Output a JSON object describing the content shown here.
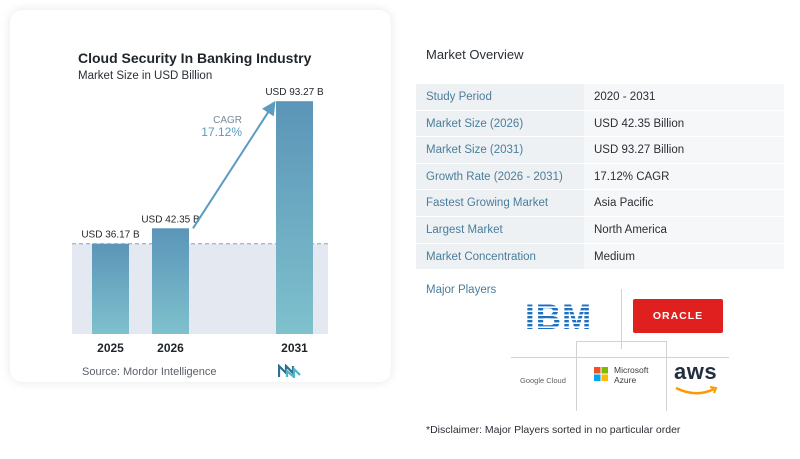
{
  "chart_card": {
    "title": "Cloud Security In Banking Industry",
    "subtitle": "Market Size in USD Billion",
    "cagr_label": "CAGR",
    "cagr_value": "17.12%",
    "source": "Source:  Mordor Intelligence"
  },
  "chart_data": {
    "type": "bar",
    "title": "Cloud Security In Banking Industry",
    "subtitle": "Market Size in USD Billion",
    "categories": [
      "2025",
      "2026",
      "2031"
    ],
    "values": [
      36.17,
      42.35,
      93.27
    ],
    "data_labels": [
      "USD 36.17 B",
      "USD 42.35 B",
      "USD 93.27 B"
    ],
    "ylim": [
      0,
      100
    ],
    "grid": false,
    "annotation": "CAGR 17.12%",
    "colors": {
      "bar_top": "#5b95b8",
      "bar_bottom": "#7fc1cd",
      "arrow": "#5a9bbf",
      "shade": "#e3e8f1"
    }
  },
  "overview": {
    "title": "Market Overview",
    "rows": [
      {
        "key": "Study Period",
        "value": "2020 - 2031"
      },
      {
        "key": "Market Size (2026)",
        "value": "USD 42.35 Billion"
      },
      {
        "key": "Market Size (2031)",
        "value": "USD 93.27 Billion"
      },
      {
        "key": "Growth Rate (2026 - 2031)",
        "value": "17.12% CAGR"
      },
      {
        "key": "Fastest Growing Market",
        "value": "Asia Pacific"
      },
      {
        "key": "Largest Market",
        "value": "North America"
      },
      {
        "key": "Market Concentration",
        "value": "Medium"
      }
    ],
    "major_players_label": "Major Players",
    "players": {
      "ibm": "IBM",
      "oracle": "ORACLE",
      "google": "Google Cloud",
      "azure_line1": "Microsoft",
      "azure_line2": "Azure",
      "aws": "aws"
    },
    "disclaimer": "*Disclaimer: Major Players sorted in no particular order"
  }
}
